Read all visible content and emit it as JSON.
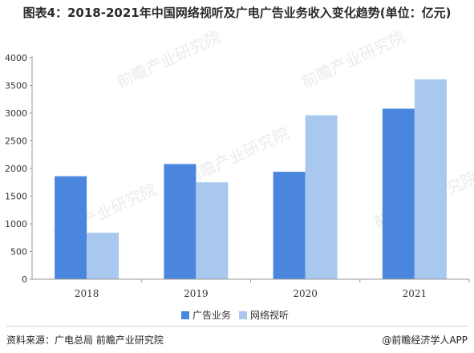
{
  "title": "图表4：2018-2021年中国网络视听及广电广告业务收入变化趋势(单位：亿元)",
  "footer": {
    "source": "资料来源：广电总局 前瞻产业研究院",
    "brand": "@前瞻经济学人APP"
  },
  "watermark": {
    "brand": "前瞻产业研究院"
  },
  "colors": {
    "series_0": "#4a86dd",
    "series_1": "#a9c8f0",
    "axis": "#999999"
  },
  "chart_data": {
    "type": "bar",
    "title": "图表4：2018-2021年中国网络视听及广电广告业务收入变化趋势(单位：亿元)",
    "xlabel": "",
    "ylabel": "",
    "categories": [
      "2018",
      "2019",
      "2020",
      "2021"
    ],
    "ylim": [
      0,
      4000
    ],
    "yticks": [
      0,
      500,
      1000,
      1500,
      2000,
      2500,
      3000,
      3500,
      4000
    ],
    "grid": false,
    "legend_position": "bottom",
    "series": [
      {
        "name": "广告业务",
        "values": [
          1860,
          2080,
          1940,
          3080
        ]
      },
      {
        "name": "网络视听",
        "values": [
          840,
          1750,
          2960,
          3610
        ]
      }
    ]
  }
}
